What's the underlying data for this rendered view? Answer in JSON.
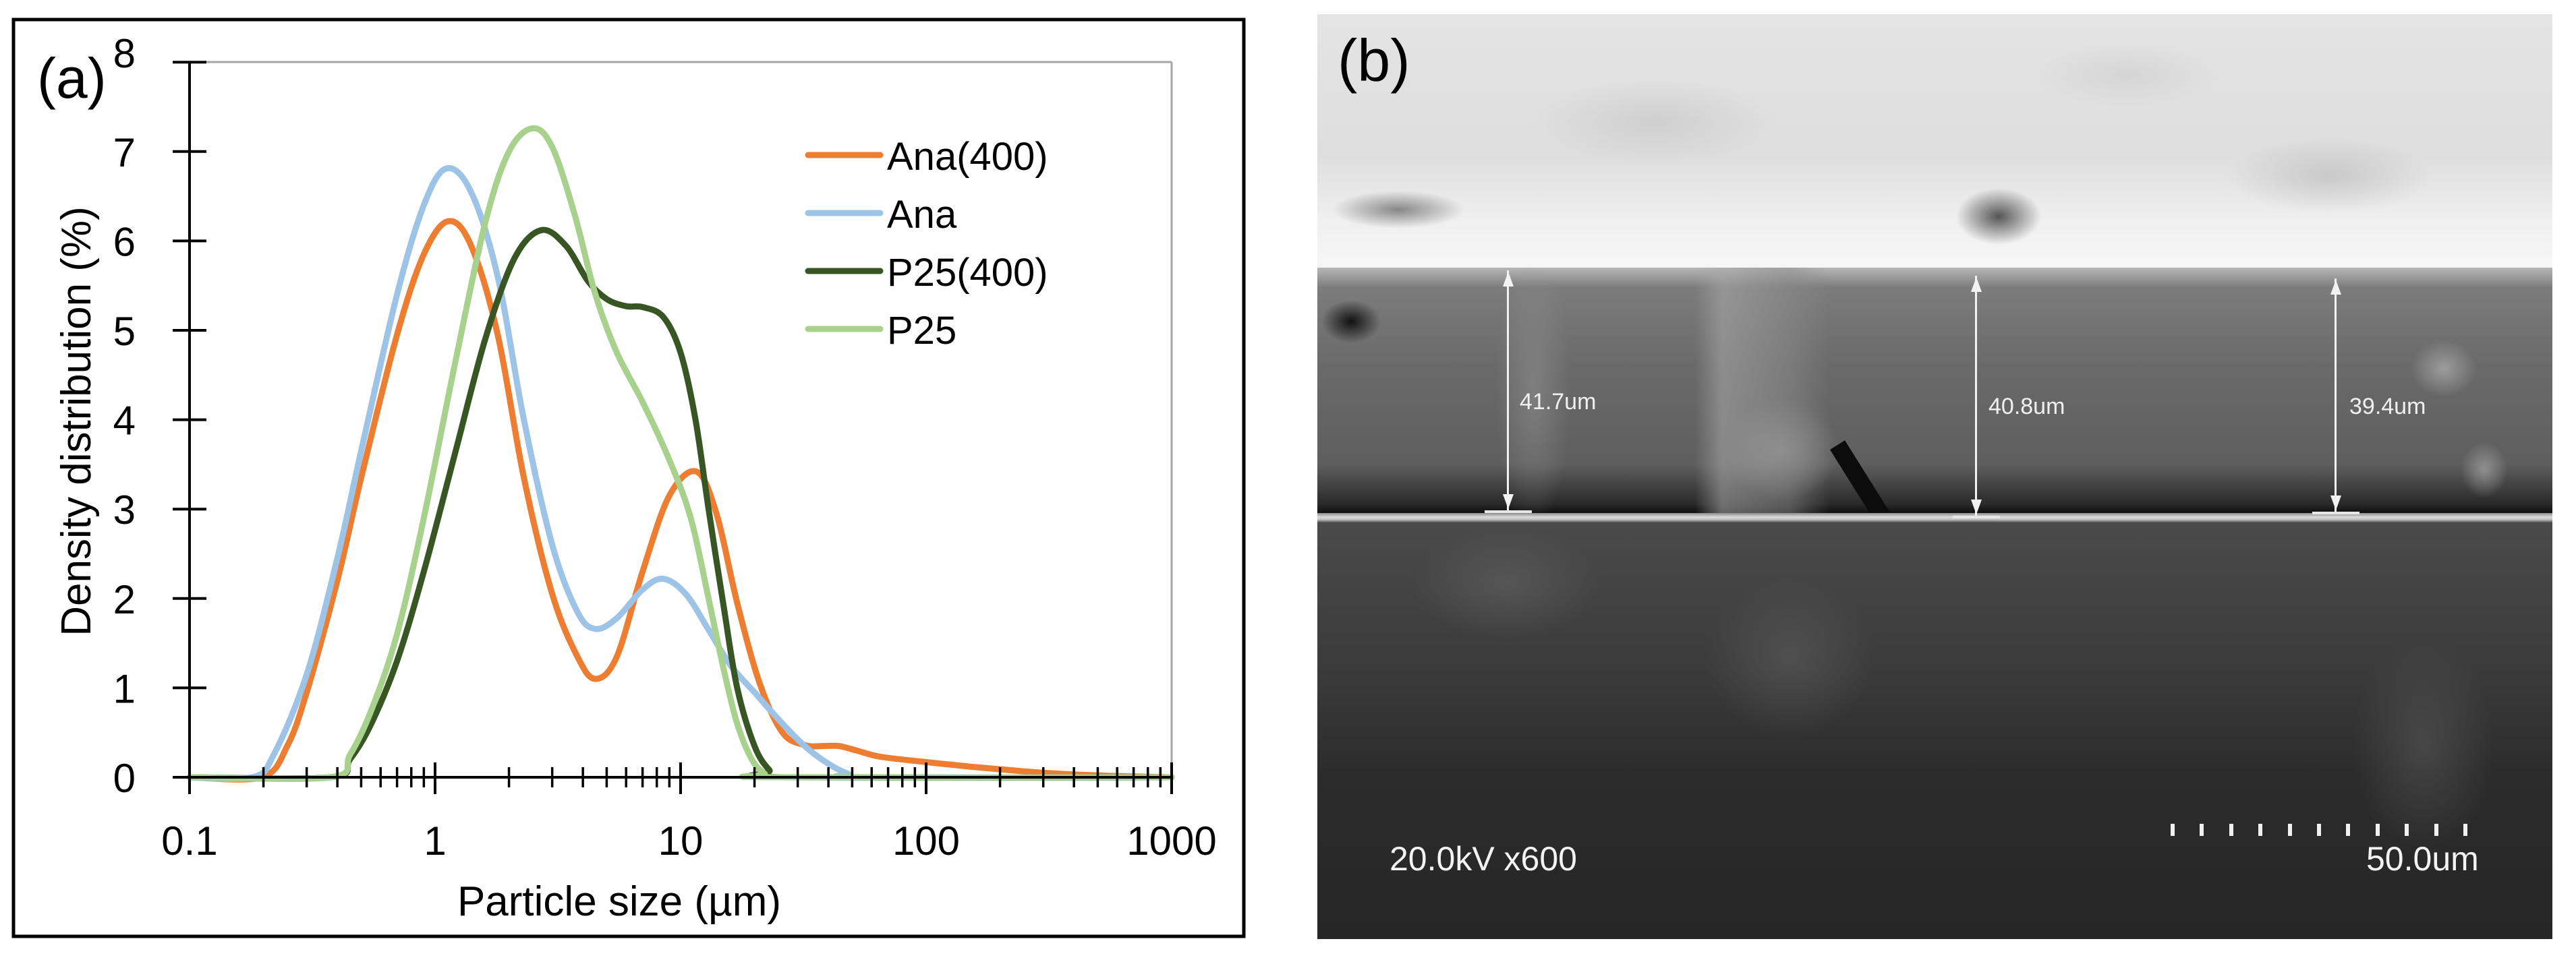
{
  "figure": {
    "panel_a_label": "(a)",
    "panel_b_label": "(b)"
  },
  "chart_data": {
    "type": "line",
    "title": "",
    "xlabel": "Particle size (µm)",
    "ylabel": "Density distribution (%)",
    "xscale": "log",
    "xlim": [
      0.1,
      1000
    ],
    "ylim": [
      0,
      8
    ],
    "x_ticks": [
      "0.1",
      "1",
      "10",
      "100",
      "1000"
    ],
    "y_ticks": [
      "0",
      "1",
      "2",
      "3",
      "4",
      "5",
      "6",
      "7",
      "8"
    ],
    "grid": false,
    "legend_position": "upper right",
    "series": [
      {
        "name": "Ana(400)",
        "color": "#ED7D31",
        "x": [
          0.1,
          0.197,
          0.25,
          0.3,
          0.4,
          0.5,
          0.7,
          0.9,
          1.13,
          1.4,
          1.8,
          2.3,
          3.0,
          3.8,
          4.5,
          5.5,
          7.0,
          9.0,
          11.6,
          14,
          17,
          21,
          26,
          32,
          38,
          44,
          52,
          65,
          100,
          150,
          200,
          300,
          500,
          1000
        ],
        "y": [
          0,
          0,
          0.35,
          0.95,
          2.2,
          3.35,
          4.95,
          5.85,
          6.22,
          5.95,
          4.95,
          3.35,
          2.05,
          1.35,
          1.1,
          1.35,
          2.3,
          3.15,
          3.42,
          2.95,
          1.95,
          1.05,
          0.5,
          0.36,
          0.35,
          0.35,
          0.3,
          0.23,
          0.17,
          0.12,
          0.09,
          0.05,
          0.02,
          0.0
        ]
      },
      {
        "name": "Ana",
        "color": "#9DC3E6",
        "x": [
          0.1,
          0.18,
          0.22,
          0.3,
          0.4,
          0.5,
          0.7,
          0.9,
          1.11,
          1.4,
          1.8,
          2.3,
          3.0,
          3.8,
          4.5,
          5.5,
          7.0,
          8.5,
          10.5,
          13,
          16,
          20,
          25,
          32,
          40,
          48,
          55,
          1000
        ],
        "y": [
          0,
          0,
          0.25,
          1.15,
          2.45,
          3.65,
          5.4,
          6.4,
          6.81,
          6.55,
          5.6,
          4.0,
          2.6,
          1.85,
          1.66,
          1.78,
          2.1,
          2.22,
          2.05,
          1.65,
          1.25,
          0.95,
          0.65,
          0.35,
          0.15,
          0.04,
          0,
          0
        ]
      },
      {
        "name": "P25(400)",
        "color": "#375623",
        "x": [
          0.1,
          0.375,
          0.45,
          0.55,
          0.7,
          0.9,
          1.2,
          1.6,
          2.1,
          2.7,
          3.4,
          4.2,
          5.0,
          6.0,
          7.0,
          8.5,
          10,
          11.5,
          13,
          15,
          17,
          20,
          23,
          26,
          1000
        ],
        "y": [
          0,
          0,
          0.2,
          0.6,
          1.3,
          2.3,
          3.6,
          4.9,
          5.8,
          6.12,
          5.95,
          5.55,
          5.35,
          5.27,
          5.26,
          5.15,
          4.75,
          4.0,
          3.0,
          1.9,
          1.0,
          0.35,
          0.08,
          0,
          0
        ]
      },
      {
        "name": "P25",
        "color": "#A9D18E",
        "x": [
          0.1,
          0.375,
          0.45,
          0.55,
          0.7,
          0.9,
          1.2,
          1.6,
          2.0,
          2.5,
          3.0,
          3.7,
          4.5,
          5.5,
          7.0,
          9.0,
          11,
          13,
          15,
          17,
          19.5,
          22,
          24,
          1000
        ],
        "y": [
          0,
          0,
          0.25,
          0.75,
          1.6,
          2.9,
          4.6,
          6.2,
          7.0,
          7.26,
          7.05,
          6.3,
          5.4,
          4.75,
          4.2,
          3.55,
          2.9,
          2.0,
          1.2,
          0.6,
          0.2,
          0.04,
          0,
          0
        ]
      }
    ]
  },
  "sem": {
    "measurements": [
      {
        "label": "41.7um"
      },
      {
        "label": "40.8um"
      },
      {
        "label": "39.4um"
      }
    ],
    "info_left": "20.0kV x600",
    "scale_bar_label": "50.0um",
    "scale_bar_ticks": 11
  }
}
